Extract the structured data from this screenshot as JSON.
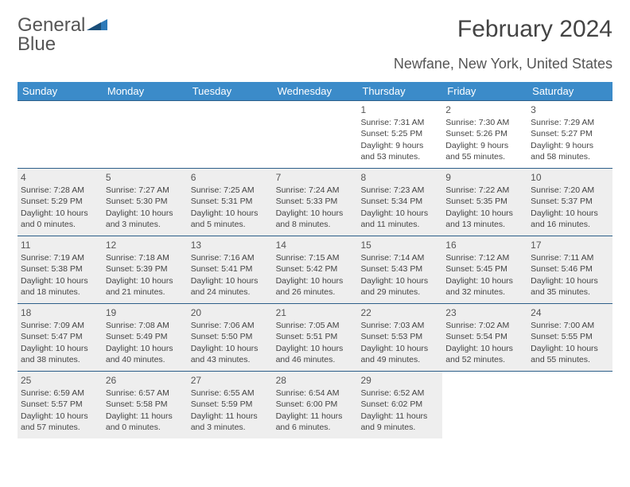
{
  "logo": {
    "word1": "General",
    "word2": "Blue"
  },
  "title": "February 2024",
  "location": "Newfane, New York, United States",
  "colors": {
    "header_bg": "#3b8bc9",
    "header_text": "#ffffff",
    "rule": "#2d5f8a",
    "shaded_bg": "#eeeeee",
    "body_text": "#444444",
    "logo_gray": "#555555",
    "logo_blue": "#2d79b8"
  },
  "weekdays": [
    "Sunday",
    "Monday",
    "Tuesday",
    "Wednesday",
    "Thursday",
    "Friday",
    "Saturday"
  ],
  "weeks": [
    [
      {
        "num": "",
        "shaded": false,
        "lines": []
      },
      {
        "num": "",
        "shaded": false,
        "lines": []
      },
      {
        "num": "",
        "shaded": false,
        "lines": []
      },
      {
        "num": "",
        "shaded": false,
        "lines": []
      },
      {
        "num": "1",
        "shaded": false,
        "lines": [
          "Sunrise: 7:31 AM",
          "Sunset: 5:25 PM",
          "Daylight: 9 hours",
          "and 53 minutes."
        ]
      },
      {
        "num": "2",
        "shaded": false,
        "lines": [
          "Sunrise: 7:30 AM",
          "Sunset: 5:26 PM",
          "Daylight: 9 hours",
          "and 55 minutes."
        ]
      },
      {
        "num": "3",
        "shaded": false,
        "lines": [
          "Sunrise: 7:29 AM",
          "Sunset: 5:27 PM",
          "Daylight: 9 hours",
          "and 58 minutes."
        ]
      }
    ],
    [
      {
        "num": "4",
        "shaded": true,
        "lines": [
          "Sunrise: 7:28 AM",
          "Sunset: 5:29 PM",
          "Daylight: 10 hours",
          "and 0 minutes."
        ]
      },
      {
        "num": "5",
        "shaded": true,
        "lines": [
          "Sunrise: 7:27 AM",
          "Sunset: 5:30 PM",
          "Daylight: 10 hours",
          "and 3 minutes."
        ]
      },
      {
        "num": "6",
        "shaded": true,
        "lines": [
          "Sunrise: 7:25 AM",
          "Sunset: 5:31 PM",
          "Daylight: 10 hours",
          "and 5 minutes."
        ]
      },
      {
        "num": "7",
        "shaded": true,
        "lines": [
          "Sunrise: 7:24 AM",
          "Sunset: 5:33 PM",
          "Daylight: 10 hours",
          "and 8 minutes."
        ]
      },
      {
        "num": "8",
        "shaded": true,
        "lines": [
          "Sunrise: 7:23 AM",
          "Sunset: 5:34 PM",
          "Daylight: 10 hours",
          "and 11 minutes."
        ]
      },
      {
        "num": "9",
        "shaded": true,
        "lines": [
          "Sunrise: 7:22 AM",
          "Sunset: 5:35 PM",
          "Daylight: 10 hours",
          "and 13 minutes."
        ]
      },
      {
        "num": "10",
        "shaded": true,
        "lines": [
          "Sunrise: 7:20 AM",
          "Sunset: 5:37 PM",
          "Daylight: 10 hours",
          "and 16 minutes."
        ]
      }
    ],
    [
      {
        "num": "11",
        "shaded": true,
        "lines": [
          "Sunrise: 7:19 AM",
          "Sunset: 5:38 PM",
          "Daylight: 10 hours",
          "and 18 minutes."
        ]
      },
      {
        "num": "12",
        "shaded": true,
        "lines": [
          "Sunrise: 7:18 AM",
          "Sunset: 5:39 PM",
          "Daylight: 10 hours",
          "and 21 minutes."
        ]
      },
      {
        "num": "13",
        "shaded": true,
        "lines": [
          "Sunrise: 7:16 AM",
          "Sunset: 5:41 PM",
          "Daylight: 10 hours",
          "and 24 minutes."
        ]
      },
      {
        "num": "14",
        "shaded": true,
        "lines": [
          "Sunrise: 7:15 AM",
          "Sunset: 5:42 PM",
          "Daylight: 10 hours",
          "and 26 minutes."
        ]
      },
      {
        "num": "15",
        "shaded": true,
        "lines": [
          "Sunrise: 7:14 AM",
          "Sunset: 5:43 PM",
          "Daylight: 10 hours",
          "and 29 minutes."
        ]
      },
      {
        "num": "16",
        "shaded": true,
        "lines": [
          "Sunrise: 7:12 AM",
          "Sunset: 5:45 PM",
          "Daylight: 10 hours",
          "and 32 minutes."
        ]
      },
      {
        "num": "17",
        "shaded": true,
        "lines": [
          "Sunrise: 7:11 AM",
          "Sunset: 5:46 PM",
          "Daylight: 10 hours",
          "and 35 minutes."
        ]
      }
    ],
    [
      {
        "num": "18",
        "shaded": true,
        "lines": [
          "Sunrise: 7:09 AM",
          "Sunset: 5:47 PM",
          "Daylight: 10 hours",
          "and 38 minutes."
        ]
      },
      {
        "num": "19",
        "shaded": true,
        "lines": [
          "Sunrise: 7:08 AM",
          "Sunset: 5:49 PM",
          "Daylight: 10 hours",
          "and 40 minutes."
        ]
      },
      {
        "num": "20",
        "shaded": true,
        "lines": [
          "Sunrise: 7:06 AM",
          "Sunset: 5:50 PM",
          "Daylight: 10 hours",
          "and 43 minutes."
        ]
      },
      {
        "num": "21",
        "shaded": true,
        "lines": [
          "Sunrise: 7:05 AM",
          "Sunset: 5:51 PM",
          "Daylight: 10 hours",
          "and 46 minutes."
        ]
      },
      {
        "num": "22",
        "shaded": true,
        "lines": [
          "Sunrise: 7:03 AM",
          "Sunset: 5:53 PM",
          "Daylight: 10 hours",
          "and 49 minutes."
        ]
      },
      {
        "num": "23",
        "shaded": true,
        "lines": [
          "Sunrise: 7:02 AM",
          "Sunset: 5:54 PM",
          "Daylight: 10 hours",
          "and 52 minutes."
        ]
      },
      {
        "num": "24",
        "shaded": true,
        "lines": [
          "Sunrise: 7:00 AM",
          "Sunset: 5:55 PM",
          "Daylight: 10 hours",
          "and 55 minutes."
        ]
      }
    ],
    [
      {
        "num": "25",
        "shaded": true,
        "lines": [
          "Sunrise: 6:59 AM",
          "Sunset: 5:57 PM",
          "Daylight: 10 hours",
          "and 57 minutes."
        ]
      },
      {
        "num": "26",
        "shaded": true,
        "lines": [
          "Sunrise: 6:57 AM",
          "Sunset: 5:58 PM",
          "Daylight: 11 hours",
          "and 0 minutes."
        ]
      },
      {
        "num": "27",
        "shaded": true,
        "lines": [
          "Sunrise: 6:55 AM",
          "Sunset: 5:59 PM",
          "Daylight: 11 hours",
          "and 3 minutes."
        ]
      },
      {
        "num": "28",
        "shaded": true,
        "lines": [
          "Sunrise: 6:54 AM",
          "Sunset: 6:00 PM",
          "Daylight: 11 hours",
          "and 6 minutes."
        ]
      },
      {
        "num": "29",
        "shaded": true,
        "lines": [
          "Sunrise: 6:52 AM",
          "Sunset: 6:02 PM",
          "Daylight: 11 hours",
          "and 9 minutes."
        ]
      },
      {
        "num": "",
        "shaded": false,
        "lines": []
      },
      {
        "num": "",
        "shaded": false,
        "lines": []
      }
    ]
  ]
}
